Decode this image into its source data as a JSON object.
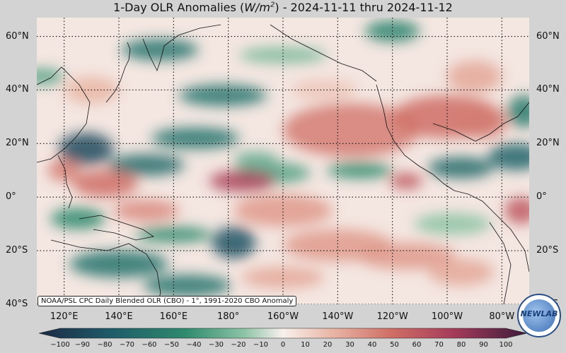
{
  "title": {
    "prefix": "1-Day OLR Anomalies (",
    "unit_base": "W/m",
    "unit_exp": "2",
    "suffix": ") - 2024-11-11 thru 2024-11-12"
  },
  "map": {
    "lon_range": [
      110,
      290
    ],
    "lat_range": [
      -40,
      67
    ],
    "lat_ticks": [
      {
        "value": 60,
        "label": "60°N"
      },
      {
        "value": 40,
        "label": "40°N"
      },
      {
        "value": 20,
        "label": "20°N"
      },
      {
        "value": 0,
        "label": "0°"
      },
      {
        "value": -20,
        "label": "20°S"
      },
      {
        "value": -40,
        "label": "40°S"
      }
    ],
    "lon_ticks": [
      {
        "value": 120,
        "label": "120°E"
      },
      {
        "value": 140,
        "label": "140°E"
      },
      {
        "value": 160,
        "label": "160°E"
      },
      {
        "value": 180,
        "label": "180°"
      },
      {
        "value": 200,
        "label": "160°W"
      },
      {
        "value": 220,
        "label": "140°W"
      },
      {
        "value": 240,
        "label": "120°W"
      },
      {
        "value": 260,
        "label": "100°W"
      },
      {
        "value": 280,
        "label": "80°W"
      }
    ],
    "grid": "dotted",
    "anomaly_blobs": [
      {
        "lon": 128,
        "lat": 18,
        "rx": 10,
        "ry": 6,
        "value": -80
      },
      {
        "lon": 150,
        "lat": 12,
        "rx": 14,
        "ry": 4,
        "value": -60
      },
      {
        "lon": 196,
        "lat": 9,
        "rx": 14,
        "ry": 4,
        "value": -30
      },
      {
        "lon": 168,
        "lat": 22,
        "rx": 16,
        "ry": 4,
        "value": -55
      },
      {
        "lon": 190,
        "lat": 14,
        "rx": 8,
        "ry": 3,
        "value": -25
      },
      {
        "lon": 155,
        "lat": 55,
        "rx": 14,
        "ry": 4,
        "value": -55
      },
      {
        "lon": 178,
        "lat": 38,
        "rx": 16,
        "ry": 4,
        "value": -55
      },
      {
        "lon": 200,
        "lat": 53,
        "rx": 16,
        "ry": 3,
        "value": -20
      },
      {
        "lon": 240,
        "lat": 62,
        "rx": 10,
        "ry": 4,
        "value": -45
      },
      {
        "lon": 228,
        "lat": 10,
        "rx": 12,
        "ry": 3,
        "value": -40
      },
      {
        "lon": 265,
        "lat": 11,
        "rx": 12,
        "ry": 4,
        "value": -60
      },
      {
        "lon": 285,
        "lat": 15,
        "rx": 10,
        "ry": 5,
        "value": -65
      },
      {
        "lon": 288,
        "lat": 32,
        "rx": 6,
        "ry": 6,
        "value": -50
      },
      {
        "lon": 125,
        "lat": -8,
        "rx": 10,
        "ry": 4,
        "value": -40
      },
      {
        "lon": 160,
        "lat": -14,
        "rx": 14,
        "ry": 3,
        "value": -40
      },
      {
        "lon": 182,
        "lat": -17,
        "rx": 8,
        "ry": 6,
        "value": -75
      },
      {
        "lon": 140,
        "lat": -25,
        "rx": 18,
        "ry": 5,
        "value": -55
      },
      {
        "lon": 165,
        "lat": -33,
        "rx": 16,
        "ry": 4,
        "value": -55
      },
      {
        "lon": 262,
        "lat": -10,
        "rx": 14,
        "ry": 4,
        "value": -15
      },
      {
        "lon": 112,
        "lat": 45,
        "rx": 8,
        "ry": 3,
        "value": -30
      },
      {
        "lon": 185,
        "lat": 6,
        "rx": 12,
        "ry": 4,
        "value": 65
      },
      {
        "lon": 135,
        "lat": 5,
        "rx": 12,
        "ry": 5,
        "value": 45
      },
      {
        "lon": 225,
        "lat": 25,
        "rx": 25,
        "ry": 10,
        "value": 40
      },
      {
        "lon": 260,
        "lat": 30,
        "rx": 20,
        "ry": 8,
        "value": 45
      },
      {
        "lon": 245,
        "lat": 6,
        "rx": 6,
        "ry": 3,
        "value": 55
      },
      {
        "lon": 272,
        "lat": 28,
        "rx": 10,
        "ry": 6,
        "value": 40
      },
      {
        "lon": 287,
        "lat": -5,
        "rx": 6,
        "ry": 5,
        "value": 55
      },
      {
        "lon": 130,
        "lat": 40,
        "rx": 10,
        "ry": 5,
        "value": 20
      },
      {
        "lon": 150,
        "lat": -5,
        "rx": 12,
        "ry": 4,
        "value": 35
      },
      {
        "lon": 200,
        "lat": -5,
        "rx": 18,
        "ry": 6,
        "value": 30
      },
      {
        "lon": 220,
        "lat": -18,
        "rx": 20,
        "ry": 6,
        "value": 30
      },
      {
        "lon": 245,
        "lat": -22,
        "rx": 18,
        "ry": 5,
        "value": 30
      },
      {
        "lon": 200,
        "lat": -30,
        "rx": 15,
        "ry": 4,
        "value": 25
      },
      {
        "lon": 270,
        "lat": 45,
        "rx": 10,
        "ry": 6,
        "value": 25
      },
      {
        "lon": 120,
        "lat": 10,
        "rx": 6,
        "ry": 4,
        "value": 40
      },
      {
        "lon": 265,
        "lat": -28,
        "rx": 12,
        "ry": 5,
        "value": 25
      },
      {
        "lon": 215,
        "lat": 40,
        "rx": 12,
        "ry": 4,
        "value": 15
      }
    ]
  },
  "source_note": "NOAA/PSL CPC Daily Blended OLR (CBO) - 1°, 1991-2020 CBO Anomaly",
  "colorbar": {
    "min": -100,
    "max": 100,
    "ticks": [
      {
        "value": -100,
        "label": "−100"
      },
      {
        "value": -90,
        "label": "−90"
      },
      {
        "value": -80,
        "label": "−80"
      },
      {
        "value": -70,
        "label": "−70"
      },
      {
        "value": -60,
        "label": "−60"
      },
      {
        "value": -50,
        "label": "−50"
      },
      {
        "value": -40,
        "label": "−40"
      },
      {
        "value": -30,
        "label": "−30"
      },
      {
        "value": -20,
        "label": "−20"
      },
      {
        "value": -10,
        "label": "−10"
      },
      {
        "value": 0,
        "label": "0"
      },
      {
        "value": 10,
        "label": "10"
      },
      {
        "value": 20,
        "label": "20"
      },
      {
        "value": 30,
        "label": "30"
      },
      {
        "value": 40,
        "label": "40"
      },
      {
        "value": 50,
        "label": "50"
      },
      {
        "value": 60,
        "label": "60"
      },
      {
        "value": 70,
        "label": "70"
      },
      {
        "value": 80,
        "label": "80"
      },
      {
        "value": 90,
        "label": "90"
      },
      {
        "value": 100,
        "label": "100"
      }
    ]
  },
  "logo": {
    "text": "NEWLAB",
    "colors": {
      "ring": "#2a4f86",
      "text": "#1a3f7a"
    }
  }
}
